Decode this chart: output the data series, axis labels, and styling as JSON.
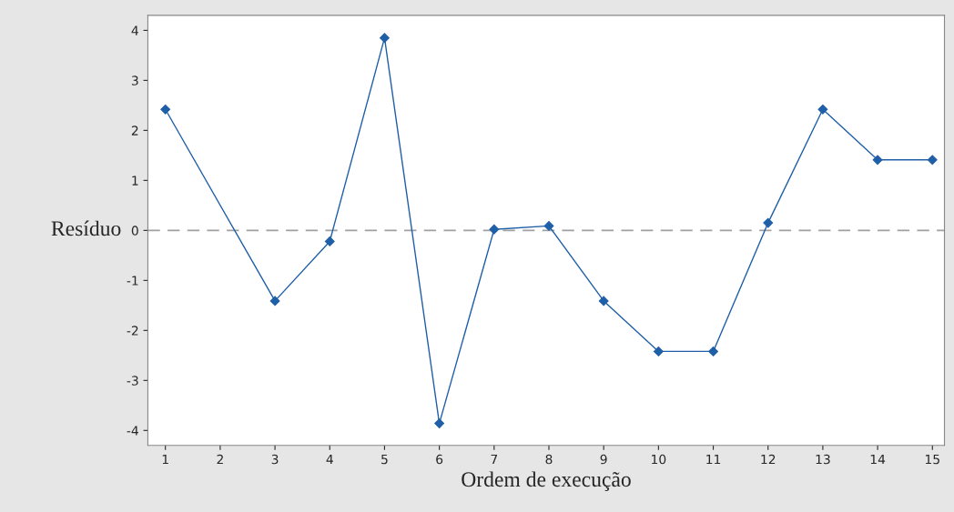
{
  "chart_data": {
    "type": "line",
    "xlabel": "Ordem de execução",
    "ylabel": "Resíduo",
    "x": [
      1,
      3,
      4,
      5,
      6,
      7,
      8,
      9,
      10,
      11,
      12,
      13,
      14,
      15
    ],
    "series": [
      {
        "color": "#1f5fa8",
        "values": [
          2.42,
          -1.41,
          -0.22,
          3.85,
          -3.86,
          0.02,
          0.09,
          -1.41,
          -2.42,
          -2.42,
          0.15,
          2.42,
          1.41,
          1.41
        ]
      }
    ],
    "xlim": [
      0.68,
      15.22
    ],
    "xticks": [
      1,
      2,
      3,
      4,
      5,
      6,
      7,
      8,
      9,
      10,
      11,
      12,
      13,
      14,
      15
    ],
    "ylim": [
      -4.3,
      4.3
    ],
    "yticks": [
      {
        "value": -4,
        "label": "-4"
      },
      {
        "value": -3,
        "label": "-3"
      },
      {
        "value": -2,
        "label": "-2"
      },
      {
        "value": -1,
        "label": "-1"
      },
      0,
      1,
      2,
      3,
      4
    ],
    "ref_lines": [
      {
        "axis": "y",
        "value": 0,
        "color": "#a0a0a0",
        "line_style": "dashed"
      }
    ],
    "marker": "diamond",
    "line_style": "solid",
    "grid": false,
    "legend": false
  }
}
